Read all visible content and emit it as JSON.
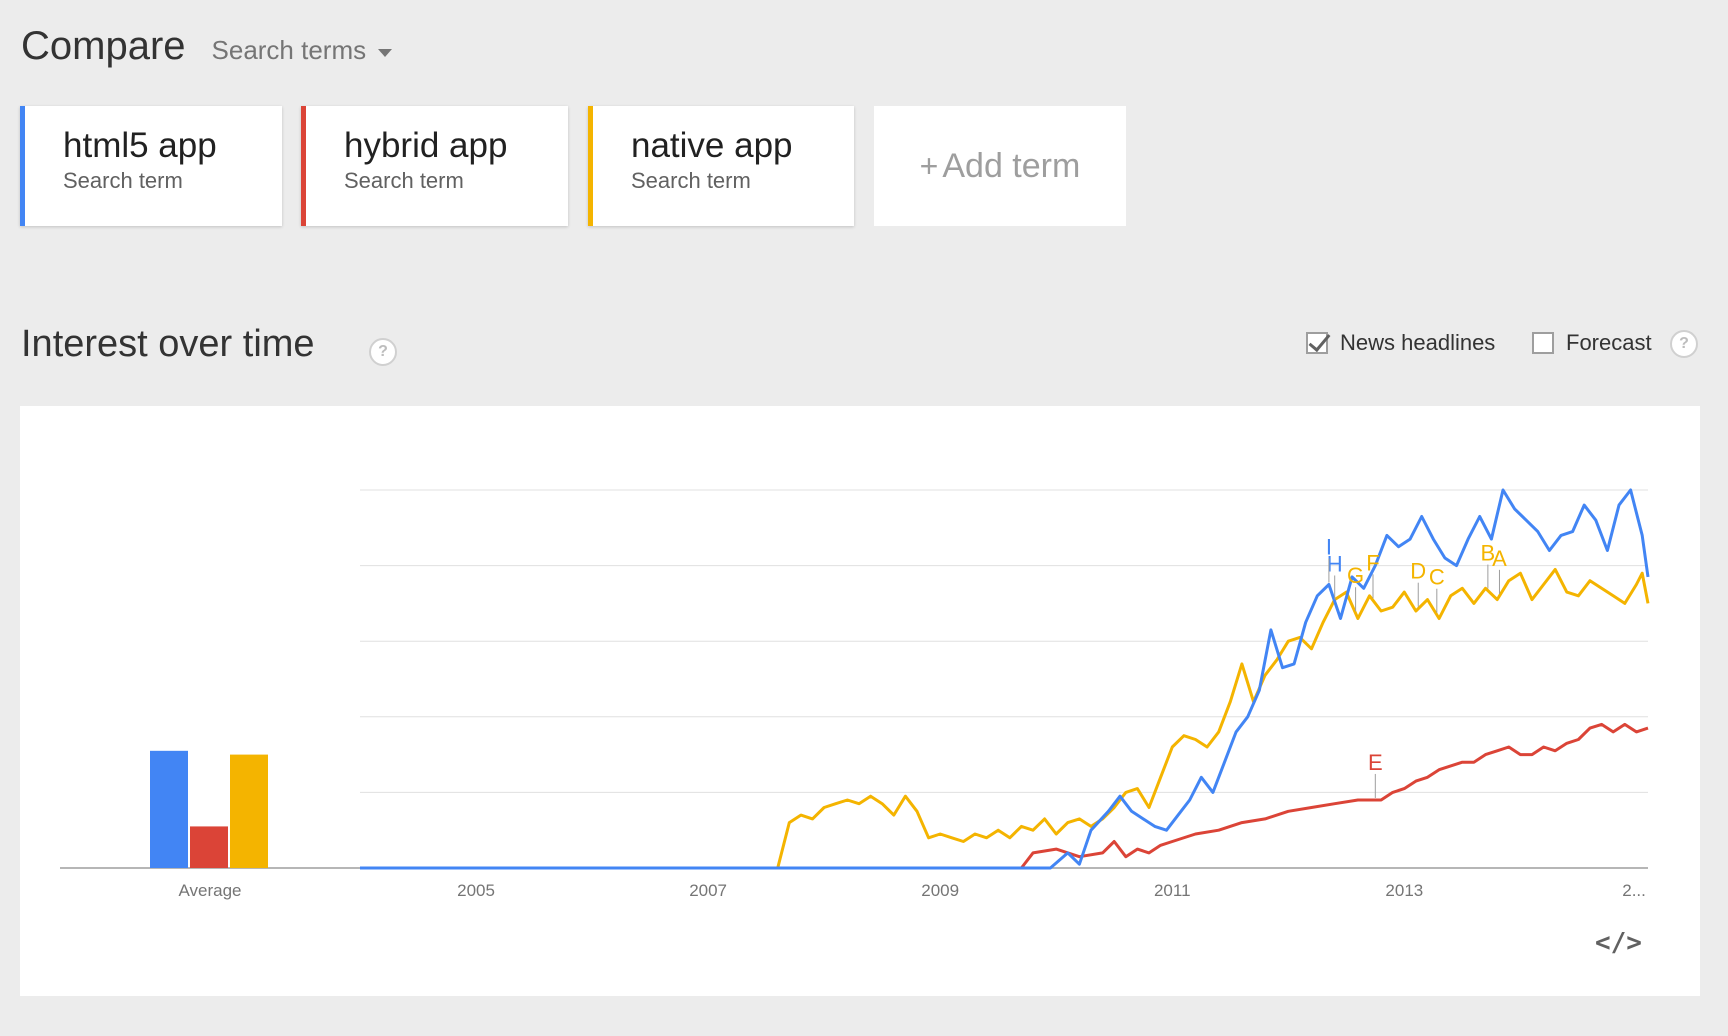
{
  "header": {
    "title": "Compare",
    "search_terms_label": "Search terms"
  },
  "terms": [
    {
      "name": "html5 app",
      "sub": "Search term",
      "color": "#4285f4"
    },
    {
      "name": "hybrid app",
      "sub": "Search term",
      "color": "#db4437"
    },
    {
      "name": "native app",
      "sub": "Search term",
      "color": "#f4b400"
    }
  ],
  "add_term": {
    "plus": "+",
    "label": "Add term"
  },
  "interest": {
    "title": "Interest over time",
    "help": "?",
    "news_headlines": {
      "label": "News headlines",
      "checked": true
    },
    "forecast": {
      "label": "Forecast",
      "checked": false
    }
  },
  "embed_label": "</>",
  "chart_data": {
    "type": "line",
    "title": "",
    "xlabel": "",
    "ylabel": "",
    "x_ticks": [
      "2005",
      "2007",
      "2009",
      "2011",
      "2013",
      "2..."
    ],
    "average_label": "Average",
    "averages": [
      {
        "name": "html5 app",
        "value": 31,
        "color": "#4285f4"
      },
      {
        "name": "hybrid app",
        "value": 11,
        "color": "#db4437"
      },
      {
        "name": "native app",
        "value": 30,
        "color": "#f4b400"
      }
    ],
    "x_domain": [
      2004.0,
      2015.1
    ],
    "ylim": [
      0,
      100
    ],
    "gridlines": [
      20,
      40,
      60,
      80,
      100
    ],
    "series": [
      {
        "name": "html5 app",
        "color": "#4285f4",
        "points": [
          [
            2004.0,
            0
          ],
          [
            2009.7,
            0
          ],
          [
            2009.95,
            0
          ],
          [
            2010.1,
            4
          ],
          [
            2010.2,
            1
          ],
          [
            2010.3,
            10
          ],
          [
            2010.45,
            15
          ],
          [
            2010.55,
            19
          ],
          [
            2010.65,
            15
          ],
          [
            2010.75,
            13
          ],
          [
            2010.85,
            11
          ],
          [
            2010.95,
            10
          ],
          [
            2011.05,
            14
          ],
          [
            2011.15,
            18
          ],
          [
            2011.25,
            24
          ],
          [
            2011.35,
            20
          ],
          [
            2011.45,
            28
          ],
          [
            2011.55,
            36
          ],
          [
            2011.65,
            40
          ],
          [
            2011.75,
            47
          ],
          [
            2011.85,
            63
          ],
          [
            2011.95,
            53
          ],
          [
            2012.05,
            54
          ],
          [
            2012.15,
            65
          ],
          [
            2012.25,
            72
          ],
          [
            2012.35,
            75
          ],
          [
            2012.45,
            66
          ],
          [
            2012.55,
            77
          ],
          [
            2012.65,
            74
          ],
          [
            2012.75,
            80
          ],
          [
            2012.85,
            88
          ],
          [
            2012.95,
            85
          ],
          [
            2013.05,
            87
          ],
          [
            2013.15,
            93
          ],
          [
            2013.25,
            87
          ],
          [
            2013.35,
            82
          ],
          [
            2013.45,
            80
          ],
          [
            2013.55,
            87
          ],
          [
            2013.65,
            93
          ],
          [
            2013.75,
            87
          ],
          [
            2013.85,
            100
          ],
          [
            2013.95,
            95
          ],
          [
            2014.05,
            92
          ],
          [
            2014.15,
            89
          ],
          [
            2014.25,
            84
          ],
          [
            2014.35,
            88
          ],
          [
            2014.45,
            89
          ],
          [
            2014.55,
            96
          ],
          [
            2014.65,
            92
          ],
          [
            2014.75,
            84
          ],
          [
            2014.85,
            96
          ],
          [
            2014.95,
            100
          ],
          [
            2015.05,
            88
          ],
          [
            2015.1,
            77
          ]
        ]
      },
      {
        "name": "hybrid app",
        "color": "#db4437",
        "points": [
          [
            2004.0,
            0
          ],
          [
            2007.55,
            0
          ],
          [
            2009.7,
            0
          ],
          [
            2009.8,
            4
          ],
          [
            2010.0,
            5
          ],
          [
            2010.2,
            3
          ],
          [
            2010.4,
            4
          ],
          [
            2010.5,
            7
          ],
          [
            2010.6,
            3
          ],
          [
            2010.7,
            5
          ],
          [
            2010.8,
            4
          ],
          [
            2010.9,
            6
          ],
          [
            2011.0,
            7
          ],
          [
            2011.2,
            9
          ],
          [
            2011.4,
            10
          ],
          [
            2011.6,
            12
          ],
          [
            2011.8,
            13
          ],
          [
            2012.0,
            15
          ],
          [
            2012.2,
            16
          ],
          [
            2012.4,
            17
          ],
          [
            2012.6,
            18
          ],
          [
            2012.8,
            18
          ],
          [
            2012.9,
            20
          ],
          [
            2013.0,
            21
          ],
          [
            2013.1,
            23
          ],
          [
            2013.2,
            24
          ],
          [
            2013.3,
            26
          ],
          [
            2013.4,
            27
          ],
          [
            2013.5,
            28
          ],
          [
            2013.6,
            28
          ],
          [
            2013.7,
            30
          ],
          [
            2013.8,
            31
          ],
          [
            2013.9,
            32
          ],
          [
            2014.0,
            30
          ],
          [
            2014.1,
            30
          ],
          [
            2014.2,
            32
          ],
          [
            2014.3,
            31
          ],
          [
            2014.4,
            33
          ],
          [
            2014.5,
            34
          ],
          [
            2014.6,
            37
          ],
          [
            2014.7,
            38
          ],
          [
            2014.8,
            36
          ],
          [
            2014.9,
            38
          ],
          [
            2015.0,
            36
          ],
          [
            2015.1,
            37
          ]
        ]
      },
      {
        "name": "native app",
        "color": "#f4b400",
        "points": [
          [
            2004.0,
            0
          ],
          [
            2007.6,
            0
          ],
          [
            2007.7,
            12
          ],
          [
            2007.8,
            14
          ],
          [
            2007.9,
            13
          ],
          [
            2008.0,
            16
          ],
          [
            2008.1,
            17
          ],
          [
            2008.2,
            18
          ],
          [
            2008.3,
            17
          ],
          [
            2008.4,
            19
          ],
          [
            2008.5,
            17
          ],
          [
            2008.6,
            14
          ],
          [
            2008.7,
            19
          ],
          [
            2008.8,
            15
          ],
          [
            2008.9,
            8
          ],
          [
            2009.0,
            9
          ],
          [
            2009.1,
            8
          ],
          [
            2009.2,
            7
          ],
          [
            2009.3,
            9
          ],
          [
            2009.4,
            8
          ],
          [
            2009.5,
            10
          ],
          [
            2009.6,
            8
          ],
          [
            2009.7,
            11
          ],
          [
            2009.8,
            10
          ],
          [
            2009.9,
            13
          ],
          [
            2010.0,
            9
          ],
          [
            2010.1,
            12
          ],
          [
            2010.2,
            13
          ],
          [
            2010.3,
            11
          ],
          [
            2010.4,
            13
          ],
          [
            2010.5,
            16
          ],
          [
            2010.6,
            20
          ],
          [
            2010.7,
            21
          ],
          [
            2010.8,
            16
          ],
          [
            2010.9,
            24
          ],
          [
            2011.0,
            32
          ],
          [
            2011.1,
            35
          ],
          [
            2011.2,
            34
          ],
          [
            2011.3,
            32
          ],
          [
            2011.4,
            36
          ],
          [
            2011.5,
            44
          ],
          [
            2011.6,
            54
          ],
          [
            2011.7,
            44
          ],
          [
            2011.8,
            51
          ],
          [
            2011.9,
            55
          ],
          [
            2012.0,
            60
          ],
          [
            2012.1,
            61
          ],
          [
            2012.2,
            58
          ],
          [
            2012.3,
            65
          ],
          [
            2012.4,
            71
          ],
          [
            2012.5,
            73
          ],
          [
            2012.6,
            66
          ],
          [
            2012.7,
            72
          ],
          [
            2012.8,
            68
          ],
          [
            2012.9,
            69
          ],
          [
            2013.0,
            73
          ],
          [
            2013.1,
            68
          ],
          [
            2013.2,
            71
          ],
          [
            2013.3,
            66
          ],
          [
            2013.4,
            72
          ],
          [
            2013.5,
            74
          ],
          [
            2013.6,
            70
          ],
          [
            2013.7,
            74
          ],
          [
            2013.8,
            71
          ],
          [
            2013.9,
            76
          ],
          [
            2014.0,
            78
          ],
          [
            2014.1,
            71
          ],
          [
            2014.2,
            75
          ],
          [
            2014.3,
            79
          ],
          [
            2014.4,
            73
          ],
          [
            2014.5,
            72
          ],
          [
            2014.6,
            76
          ],
          [
            2014.7,
            74
          ],
          [
            2014.8,
            72
          ],
          [
            2014.9,
            70
          ],
          [
            2015.0,
            75
          ],
          [
            2015.05,
            78
          ],
          [
            2015.1,
            70
          ]
        ]
      }
    ],
    "annotations": [
      {
        "letter": "A",
        "x": 2013.82,
        "color": "#f4b400"
      },
      {
        "letter": "B",
        "x": 2013.72,
        "color": "#f4b400"
      },
      {
        "letter": "C",
        "x": 2013.28,
        "color": "#f4b400"
      },
      {
        "letter": "D",
        "x": 2013.12,
        "color": "#f4b400"
      },
      {
        "letter": "E",
        "x": 2012.75,
        "color": "#db4437"
      },
      {
        "letter": "F",
        "x": 2012.73,
        "color": "#f4b400"
      },
      {
        "letter": "G",
        "x": 2012.58,
        "color": "#f4b400"
      },
      {
        "letter": "H",
        "x": 2012.4,
        "color": "#4285f4"
      },
      {
        "letter": "I",
        "x": 2012.35,
        "color": "#4285f4"
      }
    ]
  }
}
